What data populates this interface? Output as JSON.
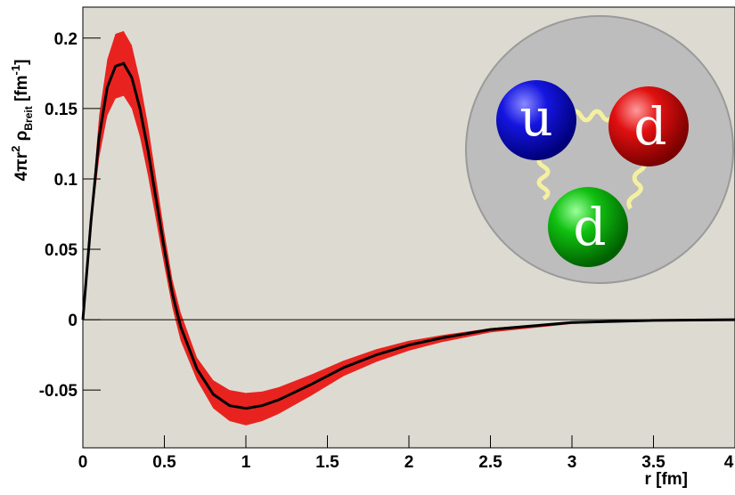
{
  "chart_data": {
    "type": "line",
    "x_label": "r [fm]",
    "y_label": [
      "4πr",
      "2",
      " ρ",
      "Breit",
      " [fm",
      "-1",
      "]"
    ],
    "inset_labels": [
      "u",
      "d",
      "d"
    ],
    "x": [
      0,
      0.05,
      0.1,
      0.15,
      0.2,
      0.25,
      0.3,
      0.35,
      0.4,
      0.45,
      0.5,
      0.55,
      0.6,
      0.7,
      0.8,
      0.9,
      1.0,
      1.1,
      1.2,
      1.4,
      1.6,
      1.8,
      2.0,
      2.2,
      2.5,
      3.0,
      3.5,
      4.0
    ],
    "line": {
      "color": "#000000",
      "values": [
        0,
        0.07,
        0.13,
        0.165,
        0.18,
        0.182,
        0.172,
        0.15,
        0.12,
        0.085,
        0.05,
        0.018,
        -0.005,
        -0.035,
        -0.053,
        -0.061,
        -0.063,
        -0.061,
        -0.057,
        -0.046,
        -0.034,
        -0.025,
        -0.018,
        -0.013,
        -0.007,
        -0.002,
        -0.0005,
        0
      ]
    },
    "band": {
      "color": "#e8231f",
      "upper": [
        0,
        0.075,
        0.145,
        0.185,
        0.203,
        0.205,
        0.195,
        0.17,
        0.138,
        0.1,
        0.062,
        0.028,
        0.005,
        -0.027,
        -0.043,
        -0.05,
        -0.052,
        -0.051,
        -0.048,
        -0.039,
        -0.029,
        -0.021,
        -0.015,
        -0.011,
        -0.006,
        -0.0015,
        -0.0003,
        0
      ],
      "lower": [
        0,
        0.065,
        0.115,
        0.145,
        0.157,
        0.159,
        0.15,
        0.13,
        0.102,
        0.07,
        0.038,
        0.008,
        -0.015,
        -0.043,
        -0.063,
        -0.072,
        -0.075,
        -0.072,
        -0.067,
        -0.054,
        -0.04,
        -0.03,
        -0.022,
        -0.016,
        -0.009,
        -0.003,
        -0.0008,
        0
      ]
    },
    "xlim": [
      0,
      4
    ],
    "ylim": [
      -0.091,
      0.222
    ],
    "xticks": [
      0,
      0.5,
      1,
      1.5,
      2,
      2.5,
      3,
      3.5,
      4
    ],
    "yticks": [
      -0.05,
      0,
      0.05,
      0.1,
      0.15,
      0.2
    ],
    "background": "#dddbd1"
  }
}
